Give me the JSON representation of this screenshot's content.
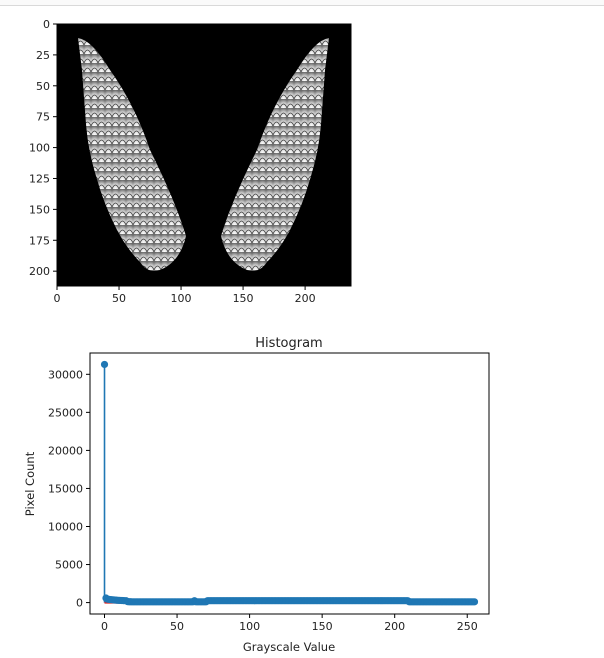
{
  "chart_data": [
    {
      "type": "image",
      "description_free": true,
      "xlim": [
        0,
        237
      ],
      "ylim": [
        212,
        0
      ],
      "xticks": [
        "0",
        "50",
        "100",
        "150",
        "200"
      ],
      "yticks": [
        "0",
        "25",
        "50",
        "75",
        "100",
        "125",
        "150",
        "175",
        "200"
      ],
      "colors": {
        "background": "#000000",
        "feather": "#e6e6e6"
      }
    },
    {
      "type": "stem",
      "title": "Histogram",
      "xlabel": "Grayscale Value",
      "ylabel": "Pixel Count",
      "xlim": [
        -10,
        265
      ],
      "ylim": [
        -1500,
        32800
      ],
      "xticks": [
        "0",
        "50",
        "100",
        "150",
        "200",
        "250"
      ],
      "yticks": [
        "0",
        "5000",
        "10000",
        "15000",
        "20000",
        "25000",
        "30000"
      ],
      "colors": {
        "stem": "#1f77b4",
        "baseline": "#d62728"
      },
      "x_start": 0,
      "values": [
        31300,
        600,
        450,
        420,
        400,
        380,
        360,
        340,
        320,
        300,
        290,
        280,
        270,
        260,
        250,
        240,
        120,
        110,
        105,
        100,
        100,
        100,
        100,
        100,
        100,
        100,
        100,
        100,
        100,
        100,
        100,
        100,
        100,
        100,
        100,
        100,
        100,
        100,
        100,
        100,
        100,
        100,
        100,
        100,
        100,
        100,
        100,
        100,
        100,
        100,
        100,
        100,
        100,
        100,
        100,
        100,
        100,
        100,
        100,
        100,
        100,
        100,
        250,
        100,
        100,
        100,
        100,
        100,
        100,
        100,
        100,
        250,
        250,
        250,
        250,
        250,
        250,
        250,
        250,
        250,
        250,
        250,
        250,
        250,
        250,
        250,
        250,
        250,
        250,
        250,
        250,
        250,
        250,
        250,
        250,
        250,
        250,
        250,
        250,
        250,
        250,
        250,
        250,
        250,
        250,
        250,
        250,
        250,
        250,
        250,
        250,
        250,
        250,
        250,
        250,
        250,
        250,
        250,
        250,
        250,
        250,
        250,
        250,
        250,
        250,
        250,
        250,
        250,
        250,
        250,
        250,
        250,
        250,
        250,
        250,
        250,
        250,
        250,
        250,
        250,
        250,
        250,
        250,
        250,
        250,
        250,
        250,
        250,
        250,
        250,
        250,
        250,
        250,
        250,
        250,
        250,
        250,
        250,
        250,
        250,
        250,
        250,
        250,
        250,
        250,
        250,
        250,
        250,
        250,
        250,
        250,
        250,
        250,
        250,
        250,
        250,
        250,
        250,
        250,
        250,
        250,
        250,
        250,
        250,
        250,
        250,
        250,
        250,
        250,
        250,
        250,
        250,
        250,
        250,
        250,
        250,
        250,
        250,
        250,
        250,
        250,
        250,
        250,
        250,
        250,
        250,
        250,
        250,
        250,
        250,
        100,
        100,
        100,
        100,
        100,
        100,
        100,
        100,
        100,
        100,
        100,
        100,
        100,
        100,
        100,
        100,
        100,
        100,
        100,
        100,
        100,
        100,
        100,
        100,
        100,
        100,
        100,
        100,
        100,
        100,
        100,
        100,
        100,
        100,
        100,
        100,
        100,
        100,
        100,
        100,
        100,
        100,
        100,
        100,
        100,
        100
      ]
    }
  ]
}
